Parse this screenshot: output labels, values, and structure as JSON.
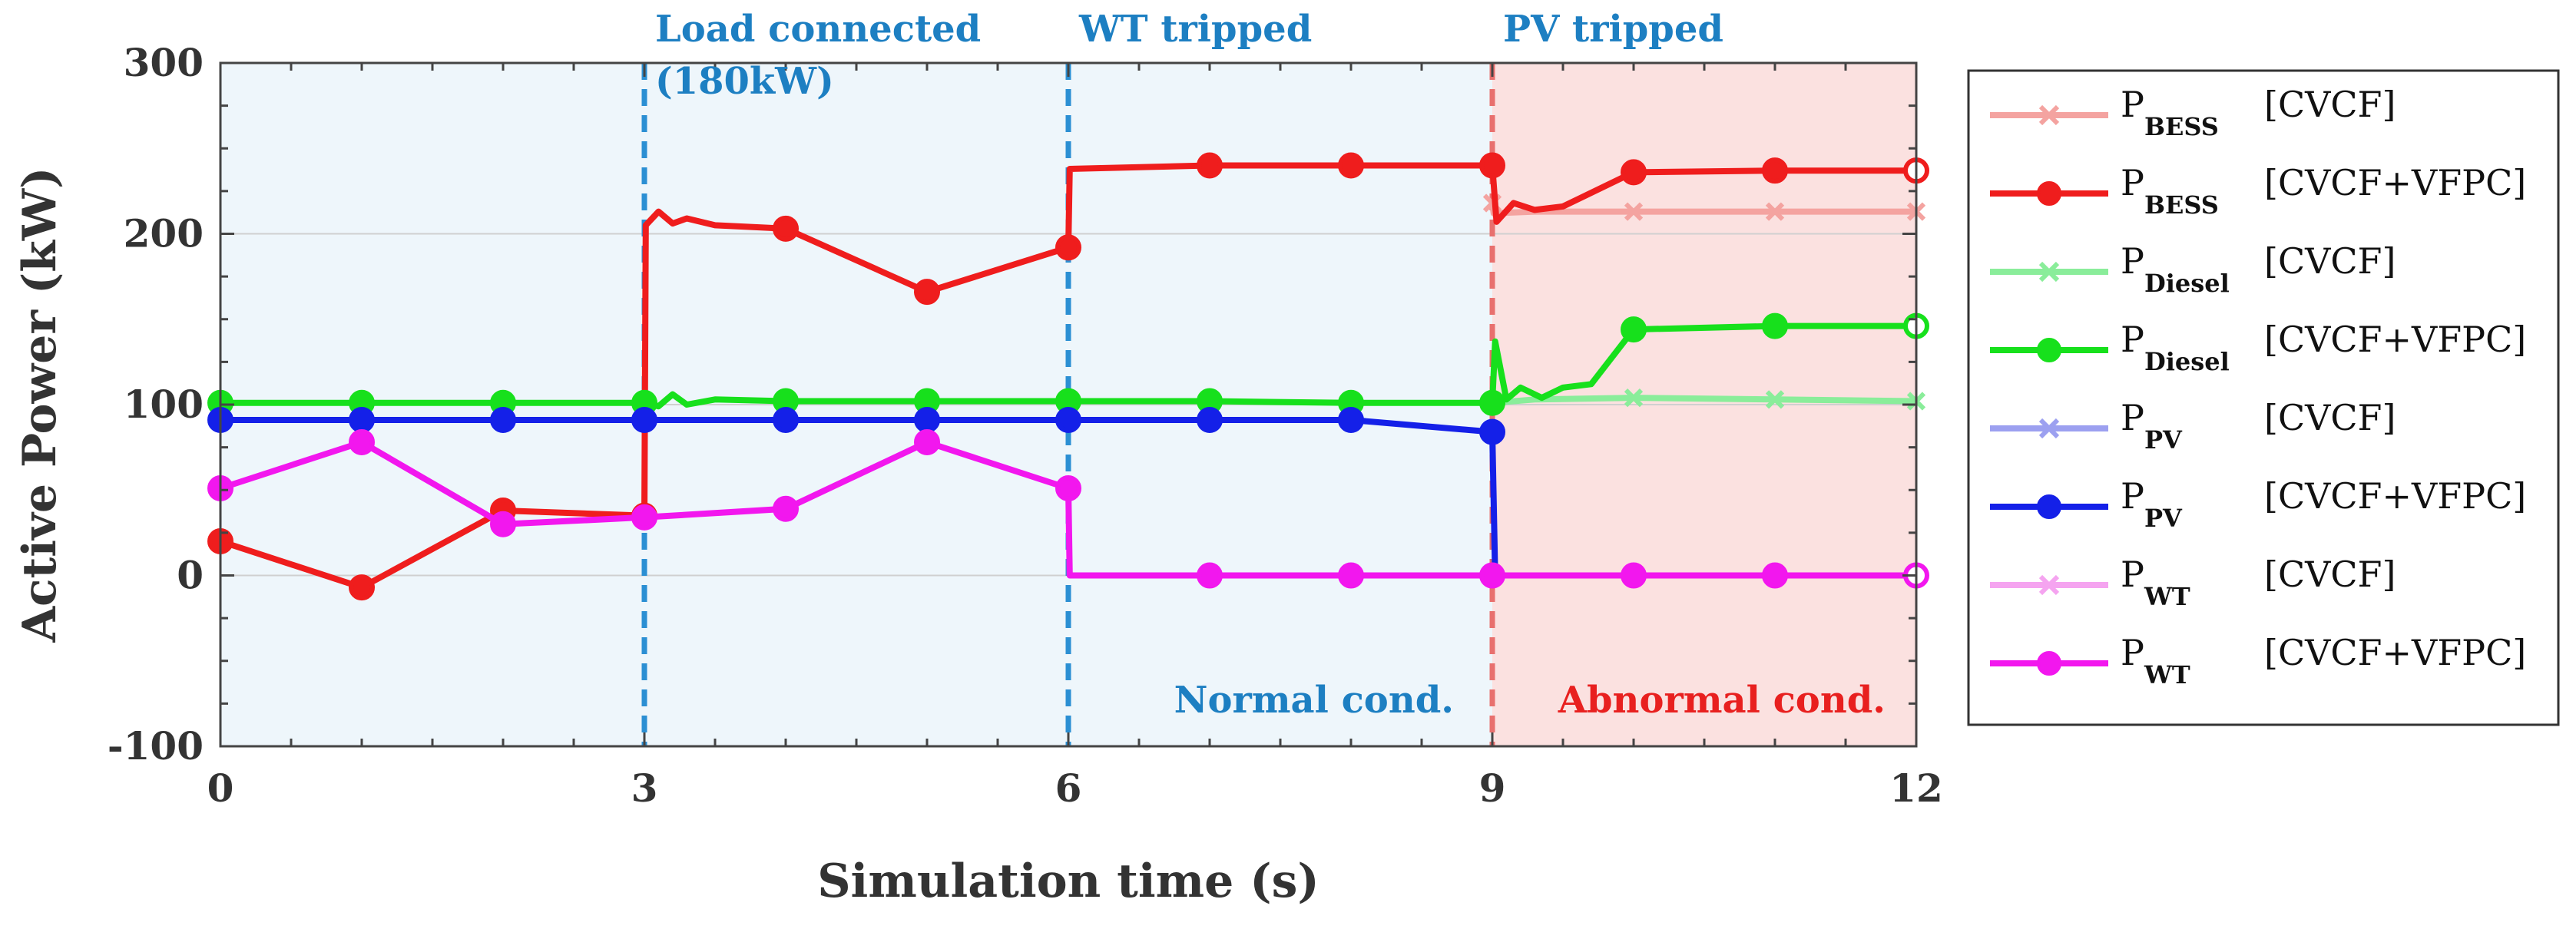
{
  "chart_data": {
    "type": "line",
    "xlabel": "Simulation time (s)",
    "ylabel": "Active Power (kW)",
    "xlim": [
      0,
      12
    ],
    "ylim": [
      -100,
      300
    ],
    "xticks": [
      0,
      3,
      6,
      9,
      12
    ],
    "yticks": [
      -100,
      0,
      100,
      200,
      300
    ],
    "grid": true,
    "regions": [
      {
        "from": 0,
        "to": 9,
        "color": "#eef6fb",
        "label": "Normal cond.",
        "label_color": "#1d7fc2"
      },
      {
        "from": 9,
        "to": 12,
        "color": "#fbe1e0",
        "label": "Abnormal cond.",
        "label_color": "#e8201f"
      }
    ],
    "events": [
      {
        "x": 3,
        "lines": [
          "Load connected",
          "(180kW)"
        ],
        "color": "#2b8fd3"
      },
      {
        "x": 6,
        "lines": [
          "WT tripped"
        ],
        "color": "#2b8fd3"
      },
      {
        "x": 9,
        "lines": [
          "PV tripped"
        ],
        "color": "#e8706e"
      }
    ],
    "series": [
      {
        "name": "P",
        "sub": "BESS",
        "tag": "[CVCF]",
        "color": "#f4a3a0",
        "marker": "x",
        "points": [
          [
            9,
            218
          ],
          [
            9.01,
            212
          ],
          [
            9.3,
            213
          ],
          [
            10,
            213
          ],
          [
            11,
            213
          ],
          [
            12,
            213
          ]
        ]
      },
      {
        "name": "P",
        "sub": "BESS",
        "tag": "[CVCF+VFPC]",
        "color": "#ef1d1d",
        "marker": "o",
        "points": [
          [
            0,
            20
          ],
          [
            1,
            -7
          ],
          [
            2,
            38
          ],
          [
            3,
            35
          ],
          [
            3.01,
            205
          ],
          [
            3.1,
            213
          ],
          [
            3.2,
            206
          ],
          [
            3.3,
            209
          ],
          [
            3.5,
            205
          ],
          [
            4,
            203
          ],
          [
            5,
            166
          ],
          [
            6,
            192
          ],
          [
            6.01,
            238
          ],
          [
            7,
            240
          ],
          [
            8,
            240
          ],
          [
            9,
            240
          ],
          [
            9.03,
            207
          ],
          [
            9.15,
            218
          ],
          [
            9.3,
            214
          ],
          [
            9.5,
            216
          ],
          [
            10,
            236
          ],
          [
            11,
            237
          ],
          [
            12,
            237
          ]
        ]
      },
      {
        "name": "P",
        "sub": "Diesel",
        "tag": "[CVCF]",
        "color": "#8aed9a",
        "marker": "x",
        "points": [
          [
            9,
            101
          ],
          [
            9.3,
            103
          ],
          [
            10,
            104
          ],
          [
            11,
            103
          ],
          [
            12,
            102
          ]
        ]
      },
      {
        "name": "P",
        "sub": "Diesel",
        "tag": "[CVCF+VFPC]",
        "color": "#17e01c",
        "marker": "o",
        "points": [
          [
            0,
            101
          ],
          [
            1,
            101
          ],
          [
            2,
            101
          ],
          [
            3,
            101
          ],
          [
            3.1,
            99
          ],
          [
            3.2,
            106
          ],
          [
            3.3,
            100
          ],
          [
            3.5,
            103
          ],
          [
            4,
            102
          ],
          [
            5,
            102
          ],
          [
            6,
            102
          ],
          [
            7,
            102
          ],
          [
            8,
            101
          ],
          [
            9,
            101
          ],
          [
            9.02,
            137
          ],
          [
            9.1,
            103
          ],
          [
            9.2,
            110
          ],
          [
            9.35,
            104
          ],
          [
            9.5,
            110
          ],
          [
            9.7,
            112
          ],
          [
            10,
            144
          ],
          [
            11,
            146
          ],
          [
            12,
            146
          ]
        ]
      },
      {
        "name": "P",
        "sub": "PV",
        "tag": "[CVCF]",
        "color": "#9ca0f0",
        "marker": "x",
        "points": []
      },
      {
        "name": "P",
        "sub": "PV",
        "tag": "[CVCF+VFPC]",
        "color": "#1420e8",
        "marker": "o",
        "points": [
          [
            0,
            91
          ],
          [
            1,
            91
          ],
          [
            2,
            91
          ],
          [
            3,
            91
          ],
          [
            4,
            91
          ],
          [
            5,
            91
          ],
          [
            6,
            91
          ],
          [
            7,
            91
          ],
          [
            8,
            91
          ],
          [
            9,
            84
          ],
          [
            9.02,
            0
          ]
        ]
      },
      {
        "name": "P",
        "sub": "WT",
        "tag": "[CVCF]",
        "color": "#f5a4f0",
        "marker": "x",
        "points": []
      },
      {
        "name": "P",
        "sub": "WT",
        "tag": "[CVCF+VFPC]",
        "color": "#f217ee",
        "marker": "o",
        "points": [
          [
            0,
            51
          ],
          [
            1,
            78
          ],
          [
            2,
            30
          ],
          [
            3,
            34
          ],
          [
            4,
            39
          ],
          [
            5,
            78
          ],
          [
            6,
            51
          ],
          [
            6.01,
            0
          ],
          [
            7,
            0
          ],
          [
            8,
            0
          ],
          [
            9,
            0
          ],
          [
            10,
            0
          ],
          [
            11,
            0
          ],
          [
            12,
            0
          ]
        ]
      }
    ]
  }
}
